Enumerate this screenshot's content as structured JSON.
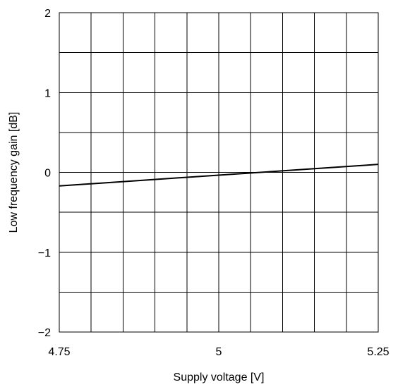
{
  "chart_data": {
    "type": "line",
    "xlabel": "Supply voltage [V]",
    "ylabel": "Low frequency gain [dB]",
    "xlim": [
      4.75,
      5.25
    ],
    "ylim": [
      -2,
      2
    ],
    "x_ticks": [
      4.75,
      5,
      5.25
    ],
    "x_tick_labels": [
      "4.75",
      "5",
      "5.25"
    ],
    "y_ticks": [
      2,
      1,
      0,
      -1,
      -2
    ],
    "y_tick_labels": [
      "2",
      "1",
      "0",
      "−1",
      "−2"
    ],
    "x_grid_divisions": 10,
    "y_grid_divisions": 8,
    "grid": true,
    "series": [
      {
        "x": [
          4.75,
          5.25
        ],
        "y": [
          -0.17,
          0.1
        ],
        "color": "#000000"
      }
    ]
  }
}
